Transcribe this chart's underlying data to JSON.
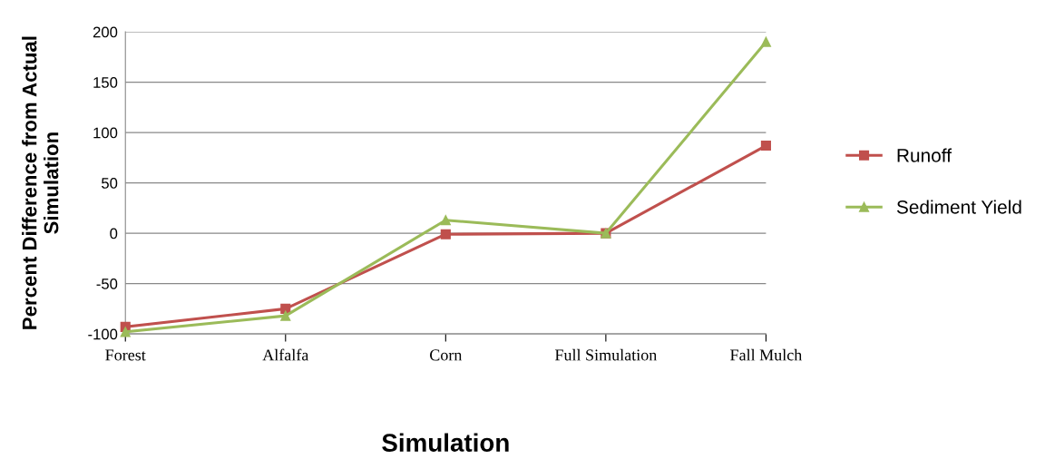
{
  "chart_data": {
    "type": "line",
    "xlabel": "Simulation",
    "ylabel": "Percent Difference from Actual\nSimulation",
    "categories": [
      "Forest",
      "Alfalfa",
      "Corn",
      "Full Simulation",
      "Fall Mulch"
    ],
    "series": [
      {
        "name": "Runoff",
        "color": "#c0504d",
        "marker": "square",
        "values": [
          -93,
          -75,
          -1,
          0,
          87
        ]
      },
      {
        "name": "Sediment Yield",
        "color": "#9bbb59",
        "marker": "triangle",
        "values": [
          -98,
          -82,
          13,
          0,
          190
        ]
      }
    ],
    "ylim": [
      -100,
      200
    ],
    "yticks": [
      -100,
      -50,
      0,
      50,
      100,
      150,
      200
    ],
    "grid": "y",
    "legend": "right",
    "line_style": "solid"
  }
}
